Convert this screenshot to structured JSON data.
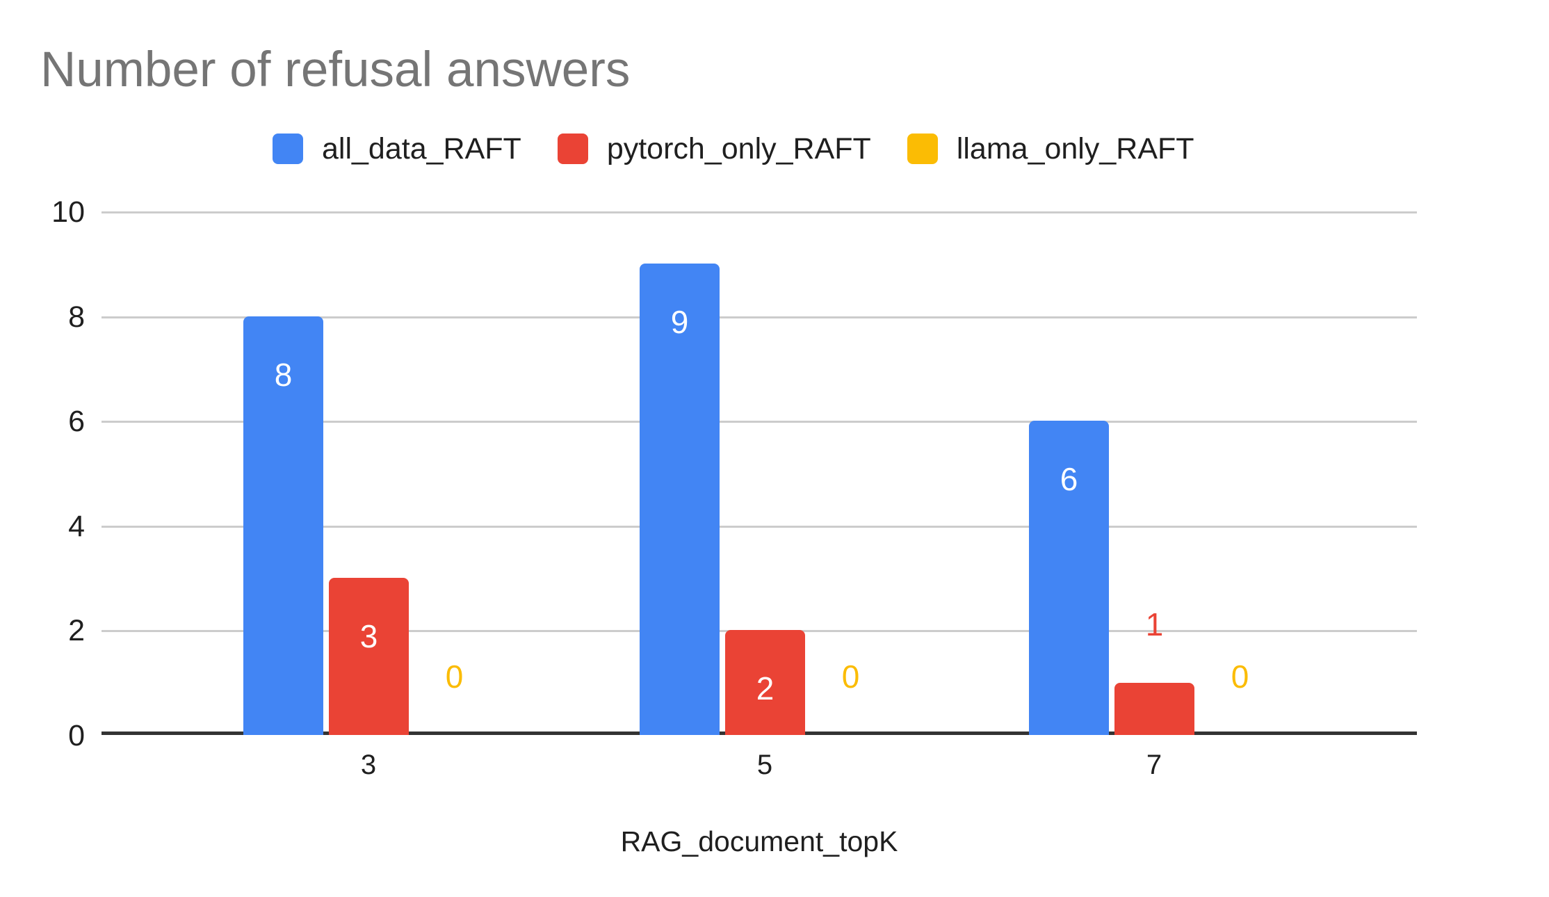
{
  "page": {
    "background": "#ffffff"
  },
  "title": {
    "text": "Number of refusal answers",
    "color": "#757575"
  },
  "legend": {
    "position": "top",
    "items": [
      {
        "label": "all_data_RAFT",
        "color": "#4285F4"
      },
      {
        "label": "pytorch_only_RAFT",
        "color": "#EA4335"
      },
      {
        "label": "llama_only_RAFT",
        "color": "#FBBC04"
      }
    ]
  },
  "axes": {
    "x_title": "RAG_document_topK",
    "x_tick_labels": [
      "3",
      "5",
      "7"
    ],
    "y_tick_labels": [
      "0",
      "2",
      "4",
      "6",
      "8",
      "10"
    ],
    "tick_text_color": "#1f1f1f",
    "gridline_color": "#cccccc",
    "axis_line_color": "#333333"
  },
  "chart_data": {
    "type": "bar",
    "title": "Number of refusal answers",
    "categories": [
      "3",
      "5",
      "7"
    ],
    "series": [
      {
        "name": "all_data_RAFT",
        "color": "#4285F4",
        "values": [
          8,
          9,
          6
        ]
      },
      {
        "name": "pytorch_only_RAFT",
        "color": "#EA4335",
        "values": [
          3,
          2,
          1
        ]
      },
      {
        "name": "llama_only_RAFT",
        "color": "#FBBC04",
        "values": [
          0,
          0,
          0
        ]
      }
    ],
    "xlabel": "RAG_document_topK",
    "ylabel": "",
    "ylim": [
      0,
      10
    ],
    "yticks": [
      0,
      2,
      4,
      6,
      8,
      10
    ],
    "grid": true,
    "legend_position": "top",
    "data_labels": {
      "shown": true,
      "inside_color": "#ffffff",
      "outside_color": "series-color"
    }
  }
}
